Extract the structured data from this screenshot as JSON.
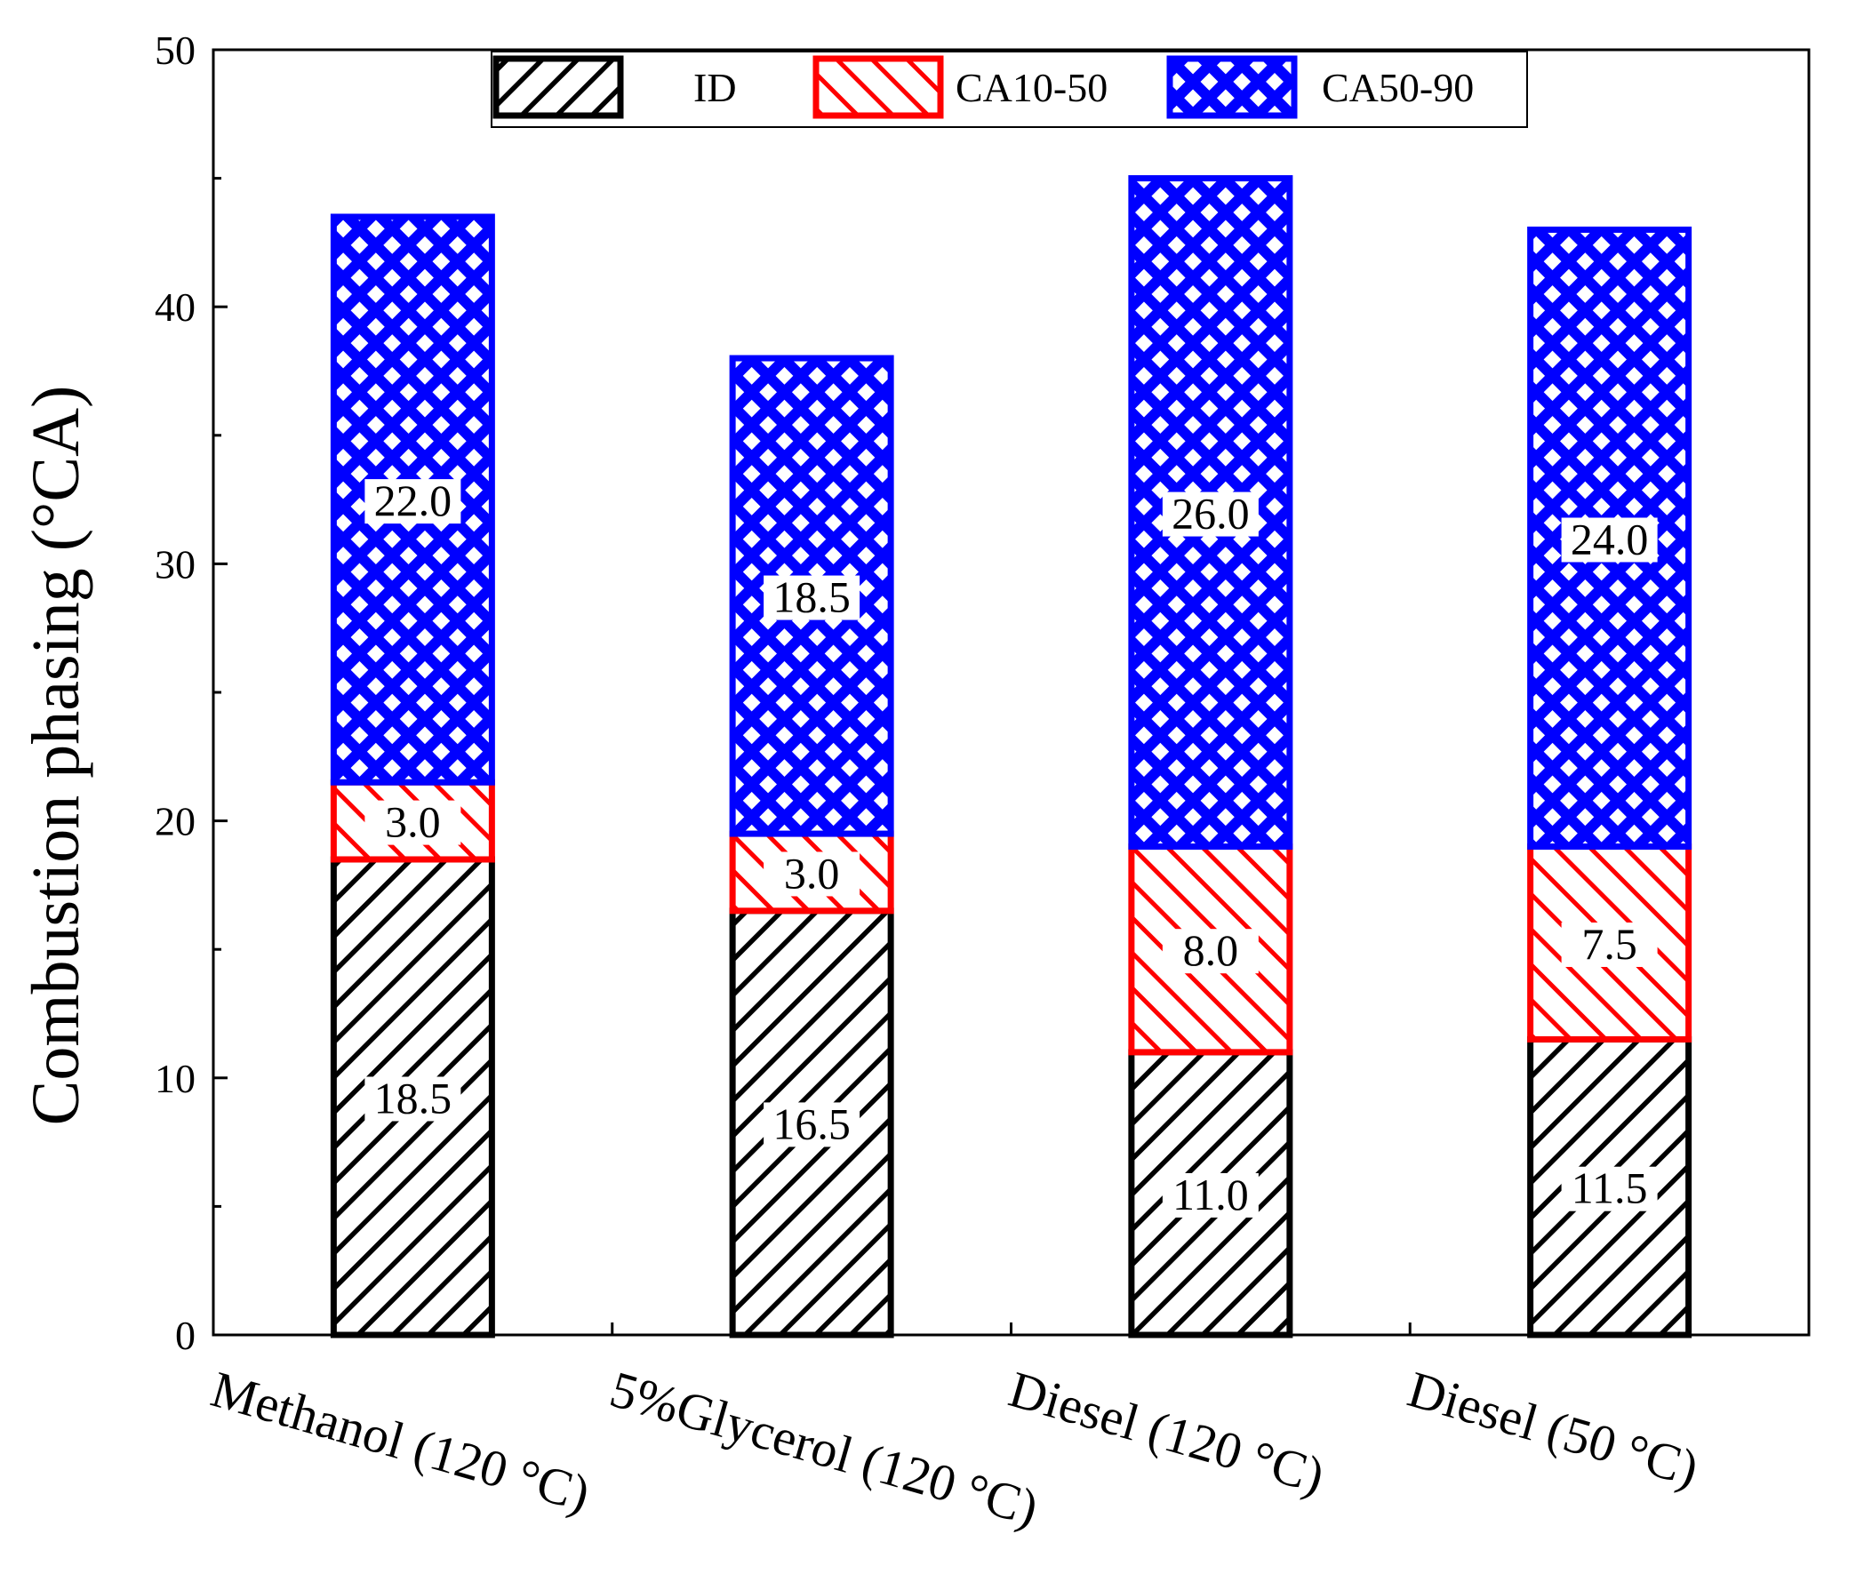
{
  "chart_data": {
    "type": "bar",
    "stacked": true,
    "title": "",
    "xlabel": "",
    "ylabel": "Combustion phasing (°CA)",
    "ylim": [
      0,
      50
    ],
    "yticks": [
      0,
      10,
      20,
      30,
      40,
      50
    ],
    "categories": [
      "Methanol (120 °C)",
      "5%Glycerol (120 °C)",
      "Diesel (120 °C)",
      "Diesel (50 °C)"
    ],
    "series": [
      {
        "name": "ID",
        "values": [
          18.5,
          16.5,
          11.0,
          11.5
        ],
        "labels": [
          "18.5",
          "16.5",
          "11.0",
          "11.5"
        ],
        "color": "#000000",
        "pattern": "diagonal-forward"
      },
      {
        "name": "CA10-50",
        "values": [
          3.0,
          3.0,
          8.0,
          7.5
        ],
        "labels": [
          "3.0",
          "3.0",
          "8.0",
          "7.5"
        ],
        "color": "#ff0000",
        "pattern": "diagonal-backward"
      },
      {
        "name": "CA50-90",
        "values": [
          22.0,
          18.5,
          26.0,
          24.0
        ],
        "labels": [
          "22.0",
          "18.5",
          "26.0",
          "24.0"
        ],
        "color": "#0000ff",
        "pattern": "crosshatch"
      }
    ],
    "legend": {
      "position": "top-center",
      "entries": [
        "ID",
        "CA10-50",
        "CA50-90"
      ]
    },
    "grid": false
  }
}
